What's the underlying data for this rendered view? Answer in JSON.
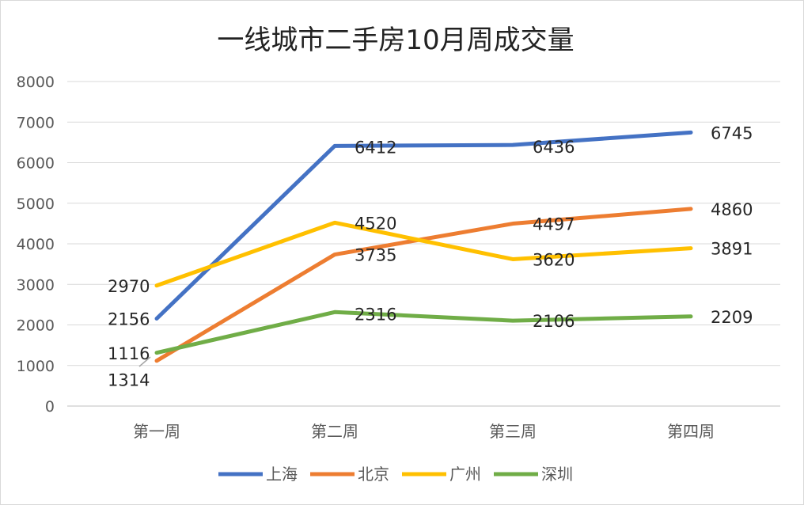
{
  "chart_data": {
    "type": "line",
    "title": "一线城市二手房10月周成交量",
    "categories": [
      "第一周",
      "第二周",
      "第三周",
      "第四周"
    ],
    "ylim": [
      0,
      8000
    ],
    "yticks": [
      0,
      1000,
      2000,
      3000,
      4000,
      5000,
      6000,
      7000,
      8000
    ],
    "grid": true,
    "legend_position": "bottom",
    "series": [
      {
        "name": "上海",
        "color": "#4472C4",
        "values": [
          2156,
          6412,
          6436,
          6745
        ]
      },
      {
        "name": "北京",
        "color": "#ED7D31",
        "values": [
          1116,
          3735,
          4497,
          4860
        ]
      },
      {
        "name": "广州",
        "color": "#FFC000",
        "values": [
          2970,
          4520,
          3620,
          3891
        ]
      },
      {
        "name": "深圳",
        "color": "#70AD47",
        "values": [
          1314,
          2316,
          2106,
          2209
        ]
      }
    ]
  }
}
